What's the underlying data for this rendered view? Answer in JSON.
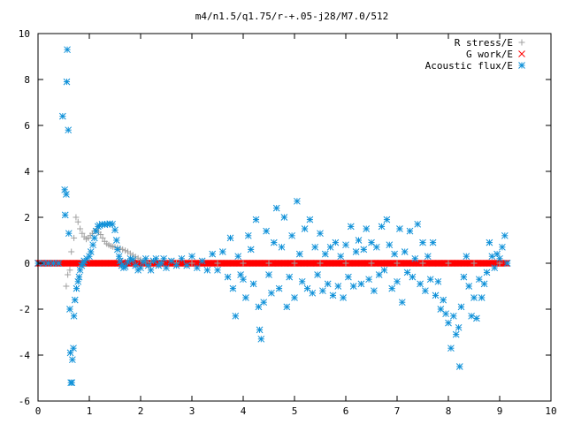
{
  "chart_data": {
    "type": "scatter",
    "title": "m4/n1.5/q1.75/r-+.05-j28/M7.0/512",
    "xlabel": "",
    "ylabel": "",
    "xlim": [
      0,
      10
    ],
    "ylim": [
      -6,
      10
    ],
    "x_ticks": [
      "0",
      "1",
      "2",
      "3",
      "4",
      "5",
      "6",
      "7",
      "8",
      "9",
      "10"
    ],
    "y_ticks": [
      "-6",
      "-4",
      "-2",
      "0",
      "2",
      "4",
      "6",
      "8",
      "10"
    ],
    "legend_position": "top-right",
    "series": [
      {
        "name": "R stress/E",
        "marker": "plus",
        "color": "#a0a0a0",
        "points": [
          [
            0.55,
            -1.0
          ],
          [
            0.58,
            -0.5
          ],
          [
            0.62,
            -0.3
          ],
          [
            0.65,
            0.5
          ],
          [
            0.7,
            1.1
          ],
          [
            0.74,
            2.0
          ],
          [
            0.78,
            1.8
          ],
          [
            0.82,
            1.5
          ],
          [
            0.86,
            1.3
          ],
          [
            0.9,
            1.15
          ],
          [
            0.94,
            1.05
          ],
          [
            0.98,
            1.1
          ],
          [
            1.02,
            1.2
          ],
          [
            1.06,
            1.3
          ],
          [
            1.1,
            1.4
          ],
          [
            1.14,
            1.45
          ],
          [
            1.18,
            1.35
          ],
          [
            1.22,
            1.25
          ],
          [
            1.26,
            1.1
          ],
          [
            1.3,
            0.95
          ],
          [
            1.34,
            0.85
          ],
          [
            1.38,
            0.8
          ],
          [
            1.42,
            0.75
          ],
          [
            1.46,
            0.72
          ],
          [
            1.5,
            0.7
          ],
          [
            1.55,
            0.68
          ],
          [
            1.6,
            0.65
          ],
          [
            1.65,
            0.6
          ],
          [
            1.7,
            0.55
          ],
          [
            1.75,
            0.5
          ],
          [
            1.8,
            0.42
          ],
          [
            1.85,
            0.35
          ],
          [
            1.9,
            0.28
          ],
          [
            1.95,
            0.22
          ],
          [
            2.0,
            0.15
          ],
          [
            2.05,
            0.1
          ],
          [
            2.1,
            0.05
          ],
          [
            2.2,
            0.03
          ],
          [
            2.4,
            0.02
          ],
          [
            2.7,
            0.01
          ],
          [
            3.0,
            0.0
          ],
          [
            3.5,
            0.0
          ],
          [
            4.0,
            0.0
          ],
          [
            4.5,
            0.0
          ],
          [
            5.0,
            0.0
          ],
          [
            5.5,
            0.0
          ],
          [
            6.0,
            0.0
          ],
          [
            6.5,
            0.0
          ],
          [
            7.0,
            0.0
          ],
          [
            7.5,
            0.0
          ],
          [
            8.0,
            0.0
          ],
          [
            8.5,
            0.0
          ],
          [
            9.0,
            0.0
          ]
        ]
      },
      {
        "name": "G work/E",
        "marker": "cross",
        "color": "#ff0000",
        "x_start": 0.0,
        "x_end": 9.15,
        "x_step": 0.02,
        "y_value": 0.0
      },
      {
        "name": "Acoustic flux/E",
        "marker": "star",
        "color": "#0e90d8",
        "points": [
          [
            0.0,
            0.0
          ],
          [
            0.1,
            0.0
          ],
          [
            0.2,
            0.0
          ],
          [
            0.3,
            0.0
          ],
          [
            0.4,
            0.0
          ],
          [
            0.48,
            6.4
          ],
          [
            0.52,
            3.2
          ],
          [
            0.55,
            3.0
          ],
          [
            0.53,
            2.1
          ],
          [
            0.57,
            9.3
          ],
          [
            0.56,
            7.9
          ],
          [
            0.59,
            5.8
          ],
          [
            0.6,
            1.3
          ],
          [
            0.62,
            -2.0
          ],
          [
            0.63,
            -3.9
          ],
          [
            0.64,
            -5.2
          ],
          [
            0.66,
            -5.2
          ],
          [
            0.67,
            -4.2
          ],
          [
            0.69,
            -3.7
          ],
          [
            0.7,
            -2.3
          ],
          [
            0.72,
            -1.6
          ],
          [
            0.75,
            -1.1
          ],
          [
            0.78,
            -0.8
          ],
          [
            0.8,
            -0.6
          ],
          [
            0.82,
            -0.3
          ],
          [
            0.85,
            -0.1
          ],
          [
            0.88,
            0.0
          ],
          [
            0.9,
            0.1
          ],
          [
            0.95,
            0.2
          ],
          [
            1.0,
            0.3
          ],
          [
            1.03,
            0.5
          ],
          [
            1.07,
            0.8
          ],
          [
            1.1,
            1.1
          ],
          [
            1.13,
            1.4
          ],
          [
            1.17,
            1.6
          ],
          [
            1.2,
            1.65
          ],
          [
            1.25,
            1.7
          ],
          [
            1.3,
            1.68
          ],
          [
            1.35,
            1.7
          ],
          [
            1.4,
            1.72
          ],
          [
            1.45,
            1.7
          ],
          [
            1.5,
            1.45
          ],
          [
            1.53,
            1.0
          ],
          [
            1.55,
            0.6
          ],
          [
            1.58,
            0.3
          ],
          [
            1.6,
            0.1
          ],
          [
            1.63,
            -0.1
          ],
          [
            1.67,
            -0.2
          ],
          [
            1.7,
            -0.15
          ],
          [
            1.75,
            0.05
          ],
          [
            1.8,
            0.2
          ],
          [
            1.85,
            0.15
          ],
          [
            1.9,
            -0.1
          ],
          [
            1.95,
            -0.3
          ],
          [
            2.0,
            -0.2
          ],
          [
            2.05,
            0.05
          ],
          [
            2.1,
            0.2
          ],
          [
            2.15,
            -0.1
          ],
          [
            2.2,
            -0.3
          ],
          [
            2.25,
            0.1
          ],
          [
            2.3,
            0.2
          ],
          [
            2.35,
            -0.1
          ],
          [
            2.4,
            0.0
          ],
          [
            2.45,
            0.2
          ],
          [
            2.5,
            -0.2
          ],
          [
            2.6,
            0.1
          ],
          [
            2.7,
            -0.1
          ],
          [
            2.8,
            0.2
          ],
          [
            2.9,
            -0.1
          ],
          [
            3.0,
            0.3
          ],
          [
            3.1,
            -0.2
          ],
          [
            3.2,
            0.1
          ],
          [
            3.3,
            -0.3
          ],
          [
            3.4,
            0.4
          ],
          [
            3.5,
            -0.3
          ],
          [
            3.6,
            0.5
          ],
          [
            3.7,
            -0.6
          ],
          [
            3.75,
            1.1
          ],
          [
            3.8,
            -1.1
          ],
          [
            3.85,
            -2.3
          ],
          [
            3.9,
            0.3
          ],
          [
            3.95,
            -0.5
          ],
          [
            4.0,
            -0.7
          ],
          [
            4.05,
            -1.5
          ],
          [
            4.1,
            1.2
          ],
          [
            4.15,
            0.6
          ],
          [
            4.2,
            -0.9
          ],
          [
            4.25,
            1.9
          ],
          [
            4.3,
            -1.9
          ],
          [
            4.32,
            -2.9
          ],
          [
            4.35,
            -3.3
          ],
          [
            4.4,
            -1.7
          ],
          [
            4.45,
            1.4
          ],
          [
            4.5,
            -0.5
          ],
          [
            4.55,
            -1.3
          ],
          [
            4.6,
            0.9
          ],
          [
            4.65,
            2.4
          ],
          [
            4.7,
            -1.1
          ],
          [
            4.75,
            0.7
          ],
          [
            4.8,
            2.0
          ],
          [
            4.85,
            -1.9
          ],
          [
            4.9,
            -0.6
          ],
          [
            4.95,
            1.2
          ],
          [
            5.0,
            -1.5
          ],
          [
            5.05,
            2.7
          ],
          [
            5.1,
            0.4
          ],
          [
            5.15,
            -0.8
          ],
          [
            5.2,
            1.5
          ],
          [
            5.25,
            -1.1
          ],
          [
            5.3,
            1.9
          ],
          [
            5.35,
            -1.3
          ],
          [
            5.4,
            0.7
          ],
          [
            5.45,
            -0.5
          ],
          [
            5.5,
            1.3
          ],
          [
            5.55,
            -1.2
          ],
          [
            5.6,
            0.4
          ],
          [
            5.65,
            -0.9
          ],
          [
            5.7,
            0.7
          ],
          [
            5.75,
            -1.4
          ],
          [
            5.8,
            0.9
          ],
          [
            5.85,
            -1.0
          ],
          [
            5.9,
            0.3
          ],
          [
            5.95,
            -1.5
          ],
          [
            6.0,
            0.8
          ],
          [
            6.05,
            -0.6
          ],
          [
            6.1,
            1.6
          ],
          [
            6.15,
            -1.0
          ],
          [
            6.2,
            0.5
          ],
          [
            6.25,
            1.0
          ],
          [
            6.3,
            -0.9
          ],
          [
            6.35,
            0.6
          ],
          [
            6.4,
            1.5
          ],
          [
            6.45,
            -0.7
          ],
          [
            6.5,
            0.9
          ],
          [
            6.55,
            -1.2
          ],
          [
            6.6,
            0.7
          ],
          [
            6.65,
            -0.5
          ],
          [
            6.7,
            1.6
          ],
          [
            6.75,
            -0.3
          ],
          [
            6.8,
            1.9
          ],
          [
            6.85,
            0.8
          ],
          [
            6.9,
            -1.1
          ],
          [
            6.95,
            0.4
          ],
          [
            7.0,
            -0.8
          ],
          [
            7.05,
            1.5
          ],
          [
            7.1,
            -1.7
          ],
          [
            7.15,
            0.5
          ],
          [
            7.2,
            -0.4
          ],
          [
            7.25,
            1.4
          ],
          [
            7.3,
            -0.6
          ],
          [
            7.35,
            0.2
          ],
          [
            7.4,
            1.7
          ],
          [
            7.45,
            -0.9
          ],
          [
            7.5,
            0.9
          ],
          [
            7.55,
            -1.2
          ],
          [
            7.6,
            0.3
          ],
          [
            7.65,
            -0.7
          ],
          [
            7.7,
            0.9
          ],
          [
            7.75,
            -1.4
          ],
          [
            7.8,
            -0.8
          ],
          [
            7.85,
            -2.0
          ],
          [
            7.9,
            -1.6
          ],
          [
            7.95,
            -2.2
          ],
          [
            8.0,
            -2.6
          ],
          [
            8.05,
            -3.7
          ],
          [
            8.1,
            -2.3
          ],
          [
            8.15,
            -3.1
          ],
          [
            8.2,
            -2.8
          ],
          [
            8.22,
            -4.5
          ],
          [
            8.25,
            -1.9
          ],
          [
            8.3,
            -0.6
          ],
          [
            8.35,
            0.3
          ],
          [
            8.4,
            -1.0
          ],
          [
            8.45,
            -2.3
          ],
          [
            8.5,
            -1.5
          ],
          [
            8.55,
            -2.4
          ],
          [
            8.6,
            -0.7
          ],
          [
            8.65,
            -1.5
          ],
          [
            8.7,
            -0.9
          ],
          [
            8.75,
            -0.4
          ],
          [
            8.8,
            0.9
          ],
          [
            8.85,
            0.3
          ],
          [
            8.9,
            -0.2
          ],
          [
            8.95,
            0.4
          ],
          [
            9.0,
            0.2
          ],
          [
            9.05,
            0.7
          ],
          [
            9.1,
            1.2
          ],
          [
            9.15,
            0.0
          ]
        ]
      }
    ]
  }
}
